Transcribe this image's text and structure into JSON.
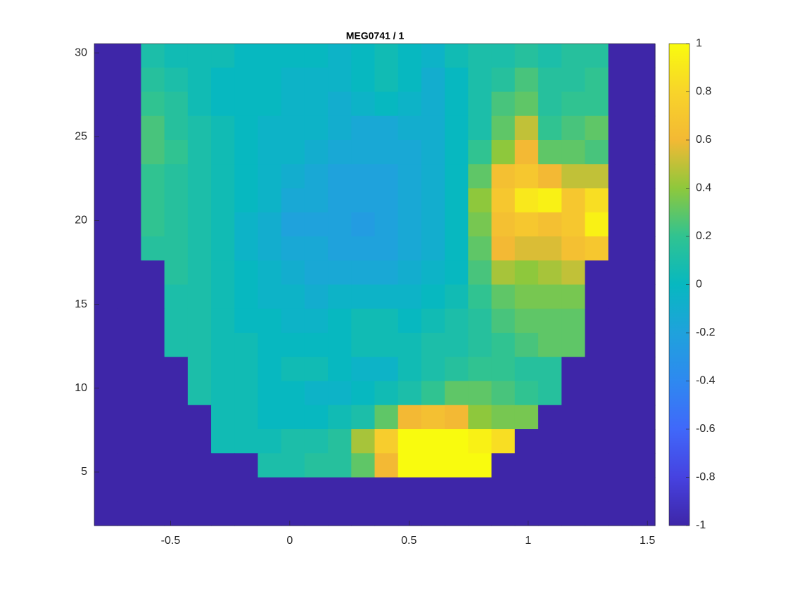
{
  "chart_data": {
    "type": "heatmap",
    "title": "MEG0741 / 1",
    "colormap": "parula",
    "xlim": [
      -0.82,
      1.532
    ],
    "ylim": [
      1.81,
      30.55
    ],
    "xticks": [
      -0.5,
      0,
      0.5,
      1,
      1.5
    ],
    "yticks": [
      5,
      10,
      15,
      20,
      25,
      30
    ],
    "clim": [
      -1,
      1
    ],
    "cticks": [
      -1,
      -0.8,
      -0.6,
      -0.4,
      -0.2,
      0,
      0.2,
      0.4,
      0.6,
      0.8,
      1
    ],
    "z": [
      [
        -1,
        -1,
        0.1,
        0.05,
        0.05,
        0.05,
        0,
        0,
        0,
        0,
        -0.05,
        0,
        0.05,
        0,
        -0.05,
        0.05,
        0.1,
        0.1,
        0.15,
        0.1,
        0.15,
        0.15,
        -1,
        -1
      ],
      [
        -1,
        -1,
        0.15,
        0.1,
        0.05,
        0,
        0,
        0,
        -0.05,
        -0.05,
        -0.05,
        0,
        0.05,
        0,
        -0.1,
        0,
        0.1,
        0.15,
        0.25,
        0.15,
        0.15,
        0.2,
        -1,
        -1
      ],
      [
        -1,
        -1,
        0.2,
        0.15,
        0.05,
        0,
        0,
        0,
        -0.05,
        -0.05,
        -0.1,
        -0.05,
        0,
        -0.05,
        -0.1,
        0,
        0.1,
        0.25,
        0.3,
        0.15,
        0.2,
        0.2,
        -1,
        -1
      ],
      [
        -1,
        -1,
        0.25,
        0.15,
        0.1,
        0.05,
        0,
        -0.05,
        -0.05,
        -0.05,
        -0.1,
        -0.15,
        -0.15,
        -0.1,
        -0.1,
        0,
        0.1,
        0.3,
        0.5,
        0.2,
        0.25,
        0.3,
        -1,
        -1
      ],
      [
        -1,
        -1,
        0.25,
        0.2,
        0.1,
        0.05,
        0,
        -0.05,
        -0.05,
        -0.1,
        -0.15,
        -0.15,
        -0.15,
        -0.15,
        -0.1,
        0,
        0.2,
        0.4,
        0.6,
        0.3,
        0.3,
        0.25,
        -1,
        -1
      ],
      [
        -1,
        -1,
        0.2,
        0.15,
        0.1,
        0.05,
        0,
        -0.05,
        -0.1,
        -0.15,
        -0.2,
        -0.2,
        -0.2,
        -0.15,
        -0.1,
        0,
        0.3,
        0.65,
        0.7,
        0.6,
        0.5,
        0.5,
        -1,
        -1
      ],
      [
        -1,
        -1,
        0.2,
        0.15,
        0.1,
        0.05,
        0,
        -0.05,
        -0.15,
        -0.15,
        -0.2,
        -0.2,
        -0.2,
        -0.15,
        -0.1,
        0,
        0.4,
        0.7,
        0.9,
        0.95,
        0.7,
        0.85,
        -1,
        -1
      ],
      [
        -1,
        -1,
        0.2,
        0.15,
        0.1,
        0.05,
        -0.05,
        -0.1,
        -0.2,
        -0.2,
        -0.2,
        -0.25,
        -0.2,
        -0.15,
        -0.1,
        0,
        0.35,
        0.65,
        0.7,
        0.65,
        0.7,
        0.95,
        -1,
        -1
      ],
      [
        -1,
        -1,
        0.15,
        0.15,
        0.1,
        0.05,
        -0.05,
        -0.1,
        -0.15,
        -0.15,
        -0.2,
        -0.2,
        -0.2,
        -0.15,
        -0.1,
        0,
        0.3,
        0.6,
        0.55,
        0.55,
        0.65,
        0.7,
        -1,
        -1
      ],
      [
        -1,
        -1,
        -1,
        0.15,
        0.1,
        0.05,
        0,
        -0.05,
        -0.1,
        -0.15,
        -0.15,
        -0.15,
        -0.15,
        -0.1,
        -0.05,
        0,
        0.25,
        0.45,
        0.4,
        0.45,
        0.5,
        -1,
        -1,
        -1
      ],
      [
        -1,
        -1,
        -1,
        0.1,
        0.1,
        0.05,
        0,
        -0.05,
        -0.05,
        -0.1,
        -0.05,
        -0.05,
        -0.05,
        -0.05,
        0,
        0.05,
        0.2,
        0.3,
        0.35,
        0.35,
        0.35,
        -1,
        -1,
        -1
      ],
      [
        -1,
        -1,
        -1,
        0.1,
        0.1,
        0.05,
        0,
        0,
        -0.05,
        -0.05,
        0,
        0.05,
        0.05,
        0,
        0.05,
        0.1,
        0.15,
        0.25,
        0.3,
        0.3,
        0.3,
        -1,
        -1,
        -1
      ],
      [
        -1,
        -1,
        -1,
        0.1,
        0.1,
        0.05,
        0.05,
        0,
        0,
        0,
        0,
        0.05,
        0.05,
        0.05,
        0.1,
        0.1,
        0.15,
        0.2,
        0.25,
        0.3,
        0.3,
        -1,
        -1,
        -1
      ],
      [
        -1,
        -1,
        -1,
        -1,
        0.1,
        0.05,
        0.05,
        0,
        0.05,
        0.05,
        0,
        -0.05,
        -0.05,
        0.05,
        0.1,
        0.15,
        0.2,
        0.2,
        0.15,
        0.15,
        -1,
        -1,
        -1,
        -1
      ],
      [
        -1,
        -1,
        -1,
        -1,
        0.1,
        0.05,
        0.05,
        0,
        0,
        -0.05,
        -0.05,
        0,
        0.05,
        0.1,
        0.2,
        0.3,
        0.3,
        0.25,
        0.2,
        0.15,
        -1,
        -1,
        -1,
        -1
      ],
      [
        -1,
        -1,
        -1,
        -1,
        -1,
        0.05,
        0.05,
        0,
        0,
        0,
        0.05,
        0.1,
        0.3,
        0.6,
        0.65,
        0.6,
        0.4,
        0.35,
        0.35,
        -1,
        -1,
        -1,
        -1,
        -1
      ],
      [
        -1,
        -1,
        -1,
        -1,
        -1,
        0.05,
        0.05,
        0.05,
        0.1,
        0.1,
        0.15,
        0.45,
        0.75,
        1,
        1,
        1,
        0.95,
        0.85,
        -1,
        -1,
        -1,
        -1,
        -1,
        -1
      ],
      [
        -1,
        -1,
        -1,
        -1,
        -1,
        -1,
        -1,
        0.1,
        0.1,
        0.15,
        0.15,
        0.3,
        0.6,
        1,
        1,
        1,
        1,
        -1,
        -1,
        -1,
        -1,
        -1,
        -1,
        -1
      ],
      [
        -1,
        -1,
        -1,
        -1,
        -1,
        -1,
        -1,
        -1,
        -1,
        -1,
        -1,
        -1,
        -1,
        -1,
        -1,
        -1,
        -1,
        -1,
        -1,
        -1,
        -1,
        -1,
        -1,
        -1
      ],
      [
        -1,
        -1,
        -1,
        -1,
        -1,
        -1,
        -1,
        -1,
        -1,
        -1,
        -1,
        -1,
        -1,
        -1,
        -1,
        -1,
        -1,
        -1,
        -1,
        -1,
        -1,
        -1,
        -1,
        -1
      ]
    ]
  }
}
